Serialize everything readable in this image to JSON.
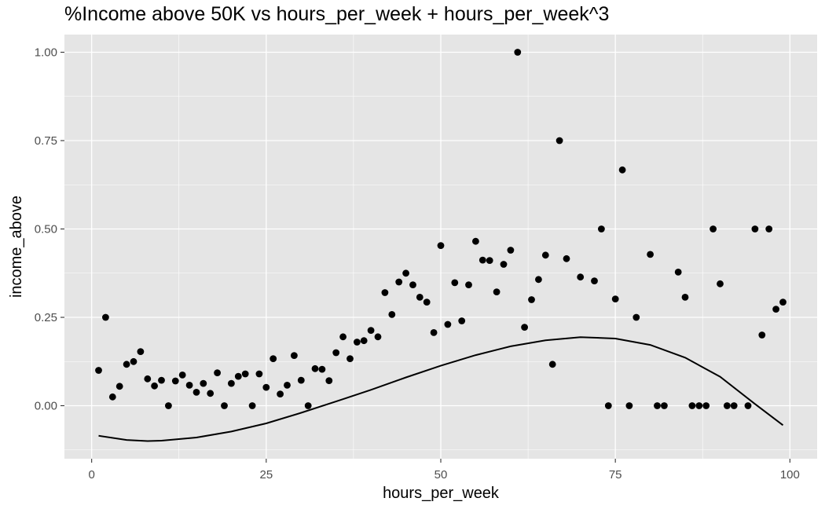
{
  "chart_data": {
    "type": "scatter",
    "title": "%Income above 50K vs hours_per_week + hours_per_week^3",
    "xlabel": "hours_per_week",
    "ylabel": "income_above",
    "xlim": [
      -3.9,
      103.9
    ],
    "ylim": [
      -0.15,
      1.05
    ],
    "xticks": [
      0,
      25,
      50,
      75,
      100
    ],
    "xtick_labels": [
      "0",
      "25",
      "50",
      "75",
      "100"
    ],
    "yticks": [
      0,
      0.25,
      0.5,
      0.75,
      1.0
    ],
    "ytick_labels": [
      "0.00",
      "0.25",
      "0.50",
      "0.75",
      "1.00"
    ],
    "grid": true,
    "background": "#e5e5e5",
    "gridline_color": "#ffffff",
    "point_color": "#000000",
    "series": [
      {
        "type": "scatter",
        "x": [
          1,
          2,
          3,
          4,
          5,
          6,
          7,
          8,
          9,
          10,
          11,
          12,
          13,
          14,
          15,
          16,
          17,
          18,
          19,
          20,
          21,
          22,
          23,
          24,
          25,
          26,
          27,
          28,
          29,
          30,
          31,
          32,
          33,
          34,
          35,
          36,
          37,
          38,
          39,
          40,
          41,
          42,
          43,
          44,
          45,
          46,
          47,
          48,
          49,
          50,
          51,
          52,
          53,
          54,
          55,
          56,
          57,
          58,
          59,
          60,
          61,
          62,
          63,
          64,
          65,
          66,
          67,
          68,
          70,
          72,
          73,
          74,
          75,
          76,
          77,
          78,
          80,
          81,
          82,
          84,
          85,
          86,
          87,
          88,
          89,
          90,
          91,
          92,
          94,
          95,
          96,
          97,
          98,
          99
        ],
        "y": [
          0.1,
          0.25,
          0.025,
          0.055,
          0.117,
          0.125,
          0.153,
          0.076,
          0.056,
          0.072,
          0.0,
          0.07,
          0.087,
          0.058,
          0.038,
          0.063,
          0.035,
          0.093,
          0.0,
          0.063,
          0.083,
          0.09,
          0.0,
          0.09,
          0.052,
          0.133,
          0.033,
          0.058,
          0.142,
          0.072,
          0.0,
          0.105,
          0.103,
          0.071,
          0.15,
          0.195,
          0.133,
          0.18,
          0.184,
          0.213,
          0.195,
          0.32,
          0.258,
          0.35,
          0.375,
          0.342,
          0.307,
          0.293,
          0.207,
          0.453,
          0.23,
          0.348,
          0.24,
          0.342,
          0.465,
          0.412,
          0.411,
          0.322,
          0.4,
          0.44,
          1.0,
          0.222,
          0.3,
          0.357,
          0.426,
          0.117,
          0.75,
          0.416,
          0.364,
          0.353,
          0.5,
          0.0,
          0.302,
          0.667,
          0.0,
          0.25,
          0.428,
          0.0,
          0.0,
          0.378,
          0.307,
          0.0,
          0.0,
          0.0,
          0.5,
          0.345,
          0.0,
          0.0,
          0.0,
          0.5,
          0.2,
          0.5,
          0.273,
          0.293
        ]
      },
      {
        "type": "line",
        "x": [
          1,
          5,
          8,
          10,
          15,
          20,
          25,
          30,
          35,
          40,
          45,
          50,
          55,
          60,
          65,
          70,
          75,
          80,
          85,
          90,
          95,
          99
        ],
        "y": [
          -0.085,
          -0.097,
          -0.1,
          -0.099,
          -0.09,
          -0.073,
          -0.05,
          -0.02,
          0.012,
          0.045,
          0.08,
          0.113,
          0.143,
          0.168,
          0.185,
          0.194,
          0.19,
          0.172,
          0.136,
          0.082,
          0.005,
          -0.055
        ]
      }
    ]
  }
}
